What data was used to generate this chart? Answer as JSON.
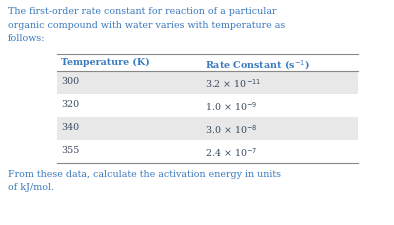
{
  "intro_lines": [
    "The first-order rate constant for reaction of a particular",
    "organic compound with water varies with temperature as",
    "follows:"
  ],
  "col1_header": "Temperature (K)",
  "col2_header": "Rate Constant (s$^{-1}$)",
  "rows": [
    {
      "temp": "300",
      "rate": "3.2 × 10$^{-11}$"
    },
    {
      "temp": "320",
      "rate": "1.0 × 10$^{-9}$"
    },
    {
      "temp": "340",
      "rate": "3.0 × 10$^{-8}$"
    },
    {
      "temp": "355",
      "rate": "2.4 × 10$^{-7}$"
    }
  ],
  "footer_lines": [
    "From these data, calculate the activation energy in units",
    "of kJ/mol."
  ],
  "text_color": "#4a5568",
  "header_color": "#3a7abf",
  "body_color": "#3a4a60",
  "row_bg_shaded": "#e8e8e8",
  "row_bg_white": "#ffffff",
  "bg_color": "#ffffff",
  "line_color": "#888888",
  "fig_width": 3.94,
  "fig_height": 2.26,
  "dpi": 100
}
